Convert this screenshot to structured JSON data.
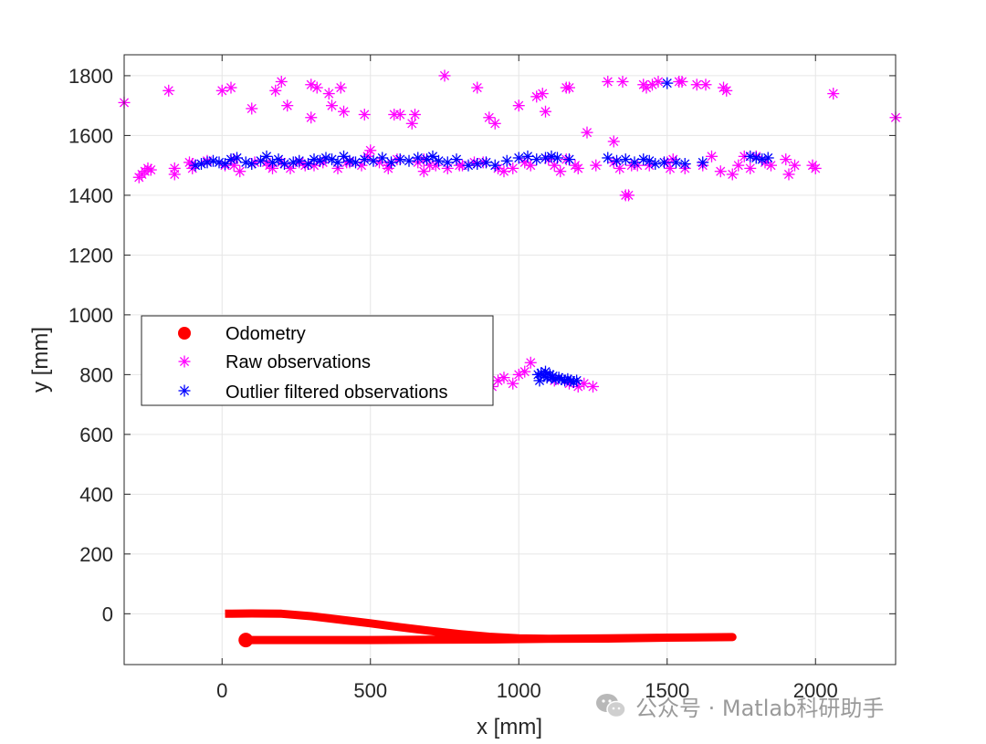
{
  "chart_data": {
    "type": "scatter",
    "title": "",
    "xlabel": "x [mm]",
    "ylabel": "y [mm]",
    "xlim": [
      -330,
      2270
    ],
    "ylim": [
      -170,
      1870
    ],
    "grid": true,
    "x_ticks": [
      0,
      500,
      1000,
      1500,
      2000
    ],
    "y_ticks": [
      0,
      200,
      400,
      600,
      800,
      1000,
      1200,
      1400,
      1600,
      1800
    ],
    "x_tick_labels": [
      "0",
      "500",
      "1000",
      "1500",
      "2000"
    ],
    "y_tick_labels": [
      "0",
      "200",
      "400",
      "600",
      "800",
      "1000",
      "1200",
      "1400",
      "1600",
      "1800"
    ],
    "legend": {
      "position": "center-left",
      "entries": [
        {
          "label": "Odometry",
          "color": "#ff0000",
          "marker": "filled-circle"
        },
        {
          "label": "Raw observations",
          "color": "#ff00ff",
          "marker": "asterisk"
        },
        {
          "label": "Outlier filtered observations",
          "color": "#0000ff",
          "marker": "asterisk"
        }
      ]
    },
    "series": [
      {
        "name": "Odometry",
        "type": "line",
        "color": "#ff0000",
        "x": [
          10,
          100,
          200,
          300,
          400,
          500,
          600,
          700,
          800,
          900,
          1000,
          1100,
          1300,
          1500,
          1720,
          1720,
          1500,
          1300,
          1100,
          900,
          700,
          500,
          300,
          80
        ],
        "y": [
          0,
          1,
          0,
          -8,
          -20,
          -32,
          -45,
          -57,
          -68,
          -77,
          -82,
          -84,
          -83,
          -80,
          -78,
          -78,
          -80,
          -82,
          -84,
          -86,
          -87,
          -88,
          -88,
          -88
        ]
      },
      {
        "name": "Odometry start",
        "type": "point",
        "color": "#ff0000",
        "x": [
          80
        ],
        "y": [
          -88
        ]
      },
      {
        "name": "Raw observations",
        "type": "scatter",
        "color": "#ff00ff",
        "x": [
          -330,
          -280,
          -270,
          -260,
          -250,
          -240,
          -180,
          -160,
          -160,
          -110,
          -100,
          -50,
          0,
          10,
          30,
          40,
          60,
          100,
          110,
          160,
          170,
          180,
          200,
          200,
          220,
          230,
          260,
          300,
          300,
          310,
          320,
          340,
          360,
          370,
          390,
          400,
          410,
          430,
          470,
          480,
          490,
          500,
          530,
          560,
          580,
          590,
          600,
          640,
          650,
          660,
          680,
          700,
          720,
          750,
          760,
          800,
          850,
          860,
          880,
          900,
          920,
          930,
          950,
          980,
          1000,
          1020,
          1040,
          1060,
          1080,
          1090,
          1100,
          1120,
          1140,
          1160,
          1170,
          1190,
          1200,
          1230,
          1260,
          1300,
          1320,
          1340,
          1350,
          1360,
          1370,
          1380,
          1400,
          1420,
          1430,
          1440,
          1450,
          1470,
          1500,
          1510,
          1520,
          1540,
          1550,
          1560,
          1600,
          1620,
          1630,
          1650,
          1680,
          1690,
          1700,
          1720,
          1740,
          1760,
          1780,
          1800,
          1830,
          1850,
          1900,
          1910,
          1930,
          1990,
          2000,
          2060,
          2270,
          910,
          930,
          950,
          980,
          1000,
          1020,
          1040,
          1120,
          1170,
          1200,
          1220,
          1250,
          -100,
          40,
          150,
          280,
          420,
          560,
          680,
          810,
          1160,
          1320
        ],
        "y": [
          1710,
          1460,
          1470,
          1480,
          1490,
          1485,
          1750,
          1470,
          1490,
          1510,
          1505,
          1515,
          1750,
          1500,
          1760,
          1520,
          1480,
          1690,
          1510,
          1500,
          1490,
          1750,
          1780,
          1510,
          1700,
          1490,
          1510,
          1660,
          1770,
          1500,
          1760,
          1510,
          1740,
          1700,
          1490,
          1760,
          1680,
          1510,
          1500,
          1670,
          1530,
          1550,
          1510,
          1490,
          1670,
          1520,
          1670,
          1640,
          1670,
          1510,
          1480,
          1500,
          1500,
          1800,
          1490,
          1500,
          1510,
          1760,
          1510,
          1660,
          1640,
          1490,
          1480,
          1490,
          1700,
          1510,
          1500,
          1730,
          1740,
          1680,
          1520,
          1500,
          1480,
          1760,
          1760,
          1500,
          1490,
          1610,
          1500,
          1780,
          1580,
          1490,
          1780,
          1400,
          1400,
          1500,
          1500,
          1770,
          1760,
          1500,
          1770,
          1780,
          1510,
          1490,
          1520,
          1780,
          1780,
          1490,
          1770,
          1500,
          1770,
          1530,
          1480,
          1760,
          1750,
          1470,
          1500,
          1530,
          1490,
          1530,
          1510,
          1500,
          1520,
          1470,
          1500,
          1500,
          1490,
          1740,
          1660,
          760,
          780,
          790,
          770,
          800,
          810,
          840,
          780,
          770,
          760,
          770,
          760,
          1490,
          1500,
          1510,
          1500,
          1510,
          1500,
          1520,
          1500,
          1520,
          1510
        ]
      },
      {
        "name": "Outlier filtered observations",
        "type": "scatter",
        "color": "#0000ff",
        "x": [
          -90,
          -70,
          -50,
          -30,
          -10,
          10,
          30,
          50,
          80,
          100,
          130,
          150,
          170,
          190,
          210,
          240,
          260,
          290,
          310,
          330,
          350,
          370,
          390,
          410,
          430,
          450,
          480,
          510,
          540,
          570,
          600,
          630,
          660,
          690,
          710,
          730,
          760,
          790,
          830,
          860,
          890,
          920,
          960,
          1000,
          1030,
          1060,
          1090,
          1110,
          1130,
          1170,
          1300,
          1330,
          1360,
          1390,
          1420,
          1440,
          1460,
          1490,
          1500,
          1530,
          1560,
          1620,
          1780,
          1800,
          1820,
          1840,
          1065,
          1075,
          1085,
          1095,
          1105,
          1115,
          1125,
          1135,
          1145,
          1155,
          1165,
          1175,
          1185,
          1195,
          1070,
          1090,
          1110
        ],
        "y": [
          1500,
          1505,
          1510,
          1515,
          1510,
          1505,
          1520,
          1525,
          1510,
          1505,
          1515,
          1530,
          1510,
          1520,
          1505,
          1510,
          1515,
          1505,
          1520,
          1515,
          1525,
          1520,
          1510,
          1530,
          1515,
          1510,
          1520,
          1515,
          1525,
          1510,
          1520,
          1515,
          1525,
          1520,
          1530,
          1515,
          1510,
          1520,
          1500,
          1505,
          1510,
          1500,
          1515,
          1525,
          1530,
          1520,
          1525,
          1530,
          1525,
          1520,
          1525,
          1515,
          1520,
          1510,
          1520,
          1515,
          1505,
          1510,
          1775,
          1510,
          1505,
          1510,
          1530,
          1525,
          1520,
          1525,
          800,
          805,
          795,
          790,
          800,
          795,
          785,
          790,
          785,
          780,
          785,
          780,
          775,
          780,
          780,
          810,
          790
        ]
      }
    ]
  }
}
